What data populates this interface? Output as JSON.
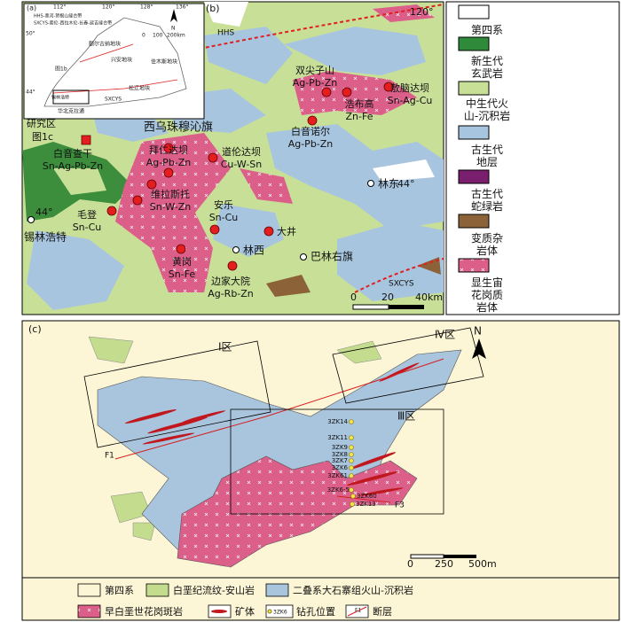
{
  "panel_a": {
    "label": "(a)",
    "longitudes": [
      "112°",
      "120°",
      "128°",
      "136°"
    ],
    "latitudes": [
      "50°",
      "44°"
    ],
    "notes": [
      "HHS-黑河-贺根山缝合带",
      "SXCYS-索伦-西拉木伦-长春-延吉缝合带"
    ],
    "blocks": [
      "额尔古纳地块",
      "兴安地块",
      "佳木斯地块",
      "松辽地块",
      "华北克拉通"
    ],
    "labels": [
      "图1b",
      "SXCYS",
      "锡林浩特"
    ],
    "north": "N",
    "scale": [
      "0",
      "100",
      "200km"
    ]
  },
  "panel_b": {
    "label": "(b)",
    "suture_labels": [
      "HHS",
      "SXCYS"
    ],
    "coordinates": [
      "120°",
      "44°",
      "44°"
    ],
    "study_area": [
      "研究区",
      "图1c"
    ],
    "region": "西乌珠穆沁旗",
    "deposits": [
      {
        "name": "双尖子山",
        "metal": "Ag-Pb-Zn"
      },
      {
        "name": "浩布高",
        "metal": "Zn-Fe"
      },
      {
        "name": "敖脑达坝",
        "metal": "Sn-Ag-Cu"
      },
      {
        "name": "白音诺尔",
        "metal": "Ag-Pb-Zn"
      },
      {
        "name": "白音查干",
        "metal": "Sn-Ag-Pb-Zn"
      },
      {
        "name": "拜仁达坝",
        "metal": "Ag-Pb-Zn"
      },
      {
        "name": "道伦达坝",
        "metal": "Cu-W-Sn"
      },
      {
        "name": "维拉斯托",
        "metal": "Sn-W-Zn"
      },
      {
        "name": "毛登",
        "metal": "Sn-Cu"
      },
      {
        "name": "安乐",
        "metal": "Sn-Cu"
      },
      {
        "name": "黄岗",
        "metal": "Sn-Fe"
      },
      {
        "name": "边家大院",
        "metal": "Ag-Rb-Zn"
      }
    ],
    "other_deposits": [
      "大井"
    ],
    "cities": [
      "林东",
      "林西",
      "巴林右旗",
      "锡林浩特"
    ],
    "scale": [
      "0",
      "20",
      "40km"
    ],
    "legend": [
      "第四系",
      "新生代玄武岩",
      "中生代火山-沉积岩",
      "古生代地层",
      "古生代蛇绿岩",
      "变质杂岩体",
      "显生宙花岗质岩体"
    ]
  },
  "panel_c": {
    "label": "(c)",
    "north": "N",
    "zones": [
      "Ⅰ区",
      "Ⅳ区",
      "Ⅲ区"
    ],
    "faults": [
      "F1",
      "F3"
    ],
    "drills": [
      "3ZK14",
      "3ZK11",
      "3ZK9",
      "3ZK8",
      "3ZK7",
      "3ZK6",
      "3ZK61",
      "3ZK6-5",
      "3ZK60",
      "3ZK13"
    ],
    "scale": [
      "0",
      "250",
      "500m"
    ],
    "legend": [
      "第四系",
      "白垩纪流纹-安山岩",
      "二叠系大石寨组火山-沉积岩",
      "早白垩世花岗斑岩",
      "矿体",
      "3ZK6",
      "钻孔位置",
      "F1",
      "断层"
    ]
  }
}
